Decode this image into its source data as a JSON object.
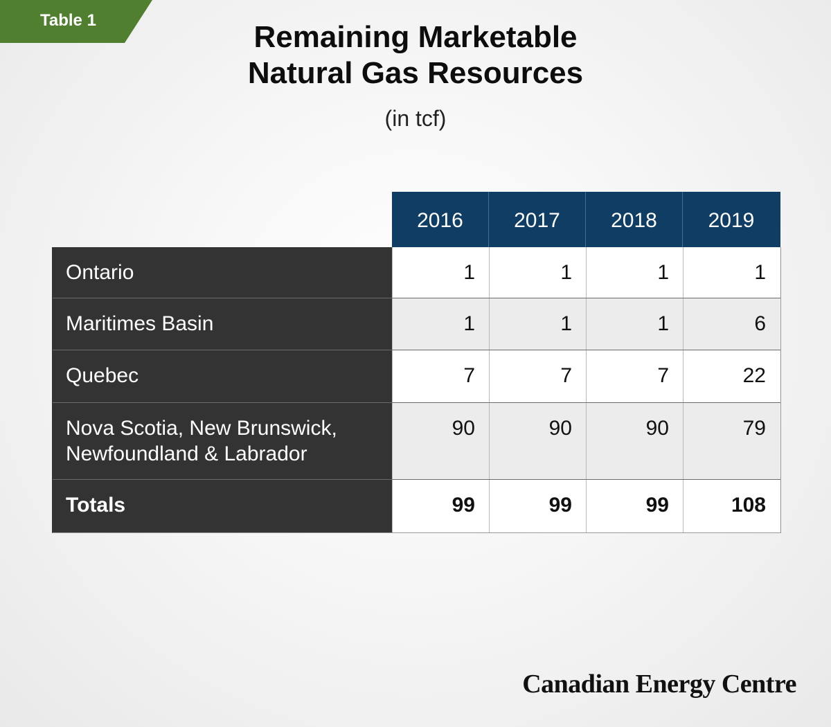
{
  "tag": "Table 1",
  "title_line1": "Remaining Marketable",
  "title_line2": "Natural Gas Resources",
  "subtitle": "(in tcf)",
  "columns": [
    "2016",
    "2017",
    "2018",
    "2019"
  ],
  "rows": [
    {
      "label": "Ontario",
      "values": [
        "1",
        "1",
        "1",
        "1"
      ]
    },
    {
      "label": "Maritimes Basin",
      "values": [
        "1",
        "1",
        "1",
        "6"
      ]
    },
    {
      "label": "Quebec",
      "values": [
        "7",
        "7",
        "7",
        "22"
      ]
    },
    {
      "label_line1": "Nova Scotia, New Brunswick,",
      "label_line2": "Newfoundland & Labrador",
      "values": [
        "90",
        "90",
        "90",
        "79"
      ]
    },
    {
      "label": "Totals",
      "values": [
        "99",
        "99",
        "99",
        "108"
      ]
    }
  ],
  "footer": "Canadian Energy Centre",
  "colors": {
    "tag": "#4f7f2f",
    "header": "#0f3d63",
    "label_bg": "#333333"
  }
}
